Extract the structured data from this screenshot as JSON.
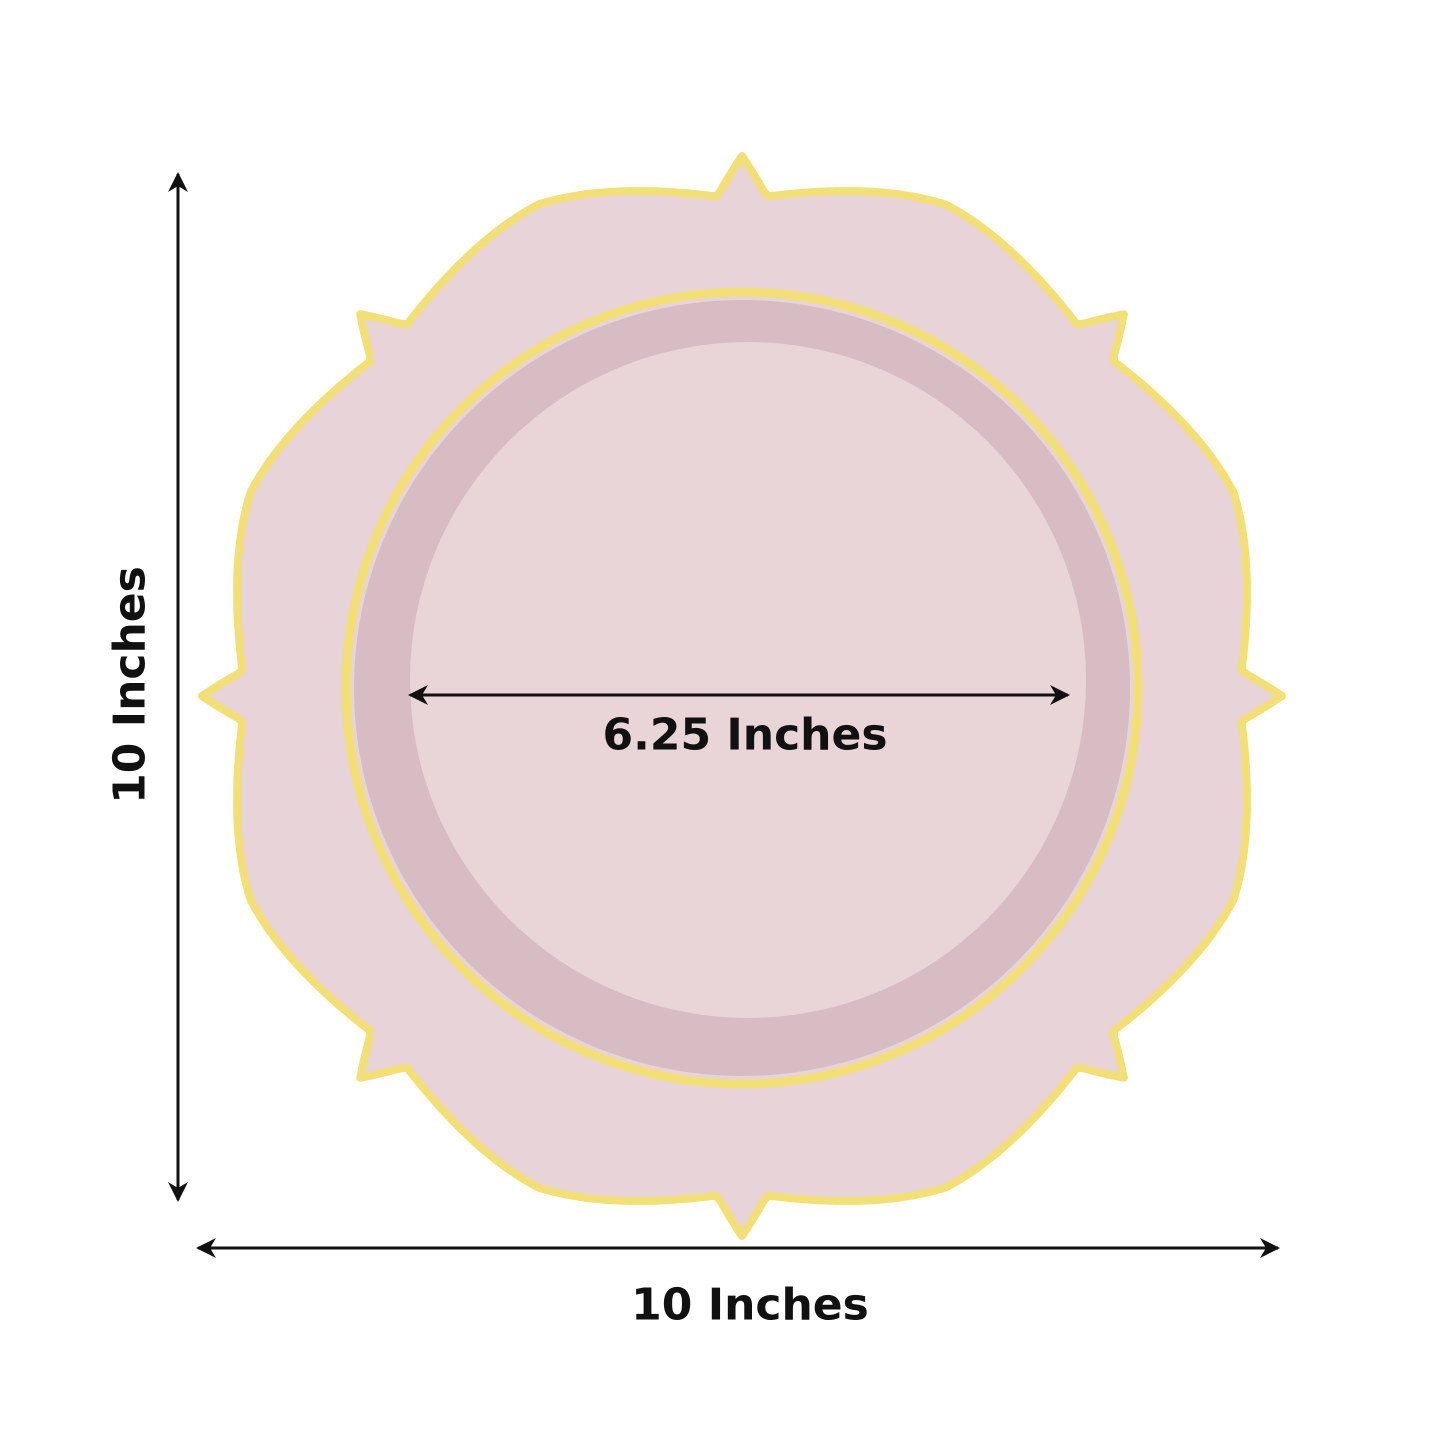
{
  "dimensions": {
    "height_label": "10 Inches",
    "width_label": "10 Inches",
    "inner_diameter_label": "6.25 Inches"
  },
  "colors": {
    "plate_rim": "#e7d3d8",
    "plate_trim": "#f3df78",
    "plate_well": "#d8bcc4",
    "plate_center": "#e9d4d8",
    "arrow": "#111111"
  }
}
